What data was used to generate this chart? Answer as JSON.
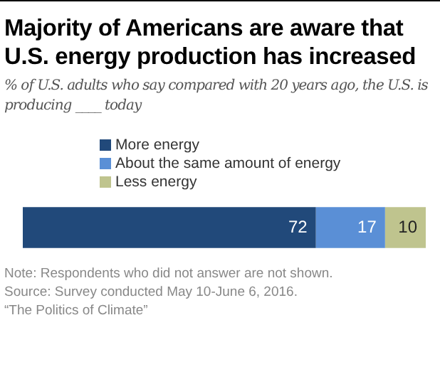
{
  "chart_data": {
    "type": "bar",
    "orientation": "horizontal",
    "stacked": true,
    "title": "Majority of Americans are aware that U.S. energy production has increased",
    "subtitle": "% of U.S. adults who say compared with 20 years ago, the U.S. is producing ____ today",
    "categories": [
      null
    ],
    "series": [
      {
        "name": "More energy",
        "color": "#21497a",
        "values": [
          72
        ]
      },
      {
        "name": "About the same amount of energy",
        "color": "#5a8fd6",
        "values": [
          17
        ]
      },
      {
        "name": "Less energy",
        "color": "#bfc48e",
        "values": [
          10
        ]
      }
    ],
    "xlim": [
      0,
      99
    ],
    "tick_labels": false,
    "legend": "top",
    "data_labels": true,
    "annotations": [
      "Note: Respondents who did not answer are not shown.",
      "Source: Survey conducted May 10-June 6, 2016.",
      "“The Politics of Climate”"
    ]
  }
}
